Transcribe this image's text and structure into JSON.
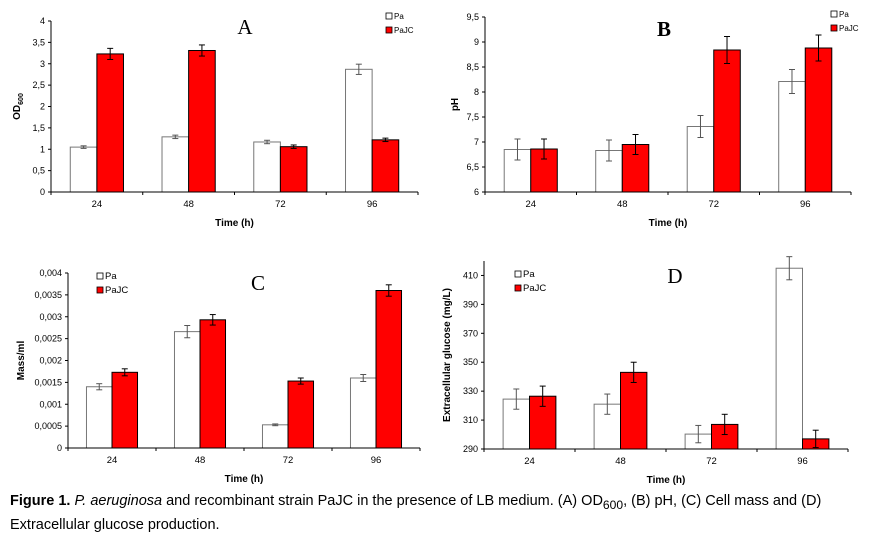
{
  "chart_data": [
    {
      "type": "bar",
      "panel_label": "A",
      "categories": [
        "24",
        "48",
        "72",
        "96"
      ],
      "xlabel": "Time (h)",
      "ylabel": "OD",
      "ylabel_sub": "600",
      "ylim": [
        0,
        4
      ],
      "yticks": [
        0,
        0.5,
        1,
        1.5,
        2,
        2.5,
        3,
        3.5,
        4
      ],
      "ytick_labels": [
        "0",
        "0,5",
        "1",
        "1,5",
        "2",
        "2,5",
        "3",
        "3,5",
        "4"
      ],
      "legend_position": "top-right",
      "series": [
        {
          "name": "Pa",
          "color": "#ffffff",
          "values": [
            1.05,
            1.29,
            1.17,
            2.87
          ],
          "errors": [
            0.03,
            0.04,
            0.04,
            0.12
          ]
        },
        {
          "name": "PaJC",
          "color": "#ff0000",
          "values": [
            3.23,
            3.31,
            1.06,
            1.22
          ],
          "errors": [
            0.13,
            0.13,
            0.04,
            0.04
          ]
        }
      ]
    },
    {
      "type": "bar",
      "panel_label": "B",
      "categories": [
        "24",
        "48",
        "72",
        "96"
      ],
      "xlabel": "Time (h)",
      "ylabel": "pH",
      "ylim": [
        6,
        9.5
      ],
      "yticks": [
        6,
        6.5,
        7,
        7.5,
        8,
        8.5,
        9,
        9.5
      ],
      "ytick_labels": [
        "6",
        "6,5",
        "7",
        "7,5",
        "8",
        "8,5",
        "9",
        "9,5"
      ],
      "legend_position": "top-right",
      "series": [
        {
          "name": "Pa",
          "color": "#ffffff",
          "values": [
            6.85,
            6.83,
            7.31,
            8.21
          ],
          "errors": [
            0.21,
            0.21,
            0.22,
            0.24
          ]
        },
        {
          "name": "PaJC",
          "color": "#ff0000",
          "values": [
            6.86,
            6.95,
            8.84,
            8.88
          ],
          "errors": [
            0.2,
            0.2,
            0.27,
            0.26
          ]
        }
      ]
    },
    {
      "type": "bar",
      "panel_label": "C",
      "categories": [
        "24",
        "48",
        "72",
        "96"
      ],
      "xlabel": "Time (h)",
      "ylabel": "Mass/ml",
      "ylim": [
        0,
        0.004
      ],
      "yticks": [
        0,
        0.0005,
        0.001,
        0.0015,
        0.002,
        0.0025,
        0.003,
        0.0035,
        0.004
      ],
      "ytick_labels": [
        "0",
        "0,0005",
        "0,001",
        "0,0015",
        "0,002",
        "0,0025",
        "0,003",
        "0,0035",
        "0,004"
      ],
      "legend_position": "top-left",
      "series": [
        {
          "name": "Pa",
          "color": "#ffffff",
          "values": [
            0.0014,
            0.00266,
            0.00053,
            0.0016
          ],
          "errors": [
            7e-05,
            0.00014,
            2e-05,
            8e-05
          ]
        },
        {
          "name": "PaJC",
          "color": "#ff0000",
          "values": [
            0.00173,
            0.00293,
            0.00153,
            0.0036
          ],
          "errors": [
            8e-05,
            0.00012,
            7e-05,
            0.00013
          ]
        }
      ]
    },
    {
      "type": "bar",
      "panel_label": "D",
      "categories": [
        "24",
        "48",
        "72",
        "96"
      ],
      "xlabel": "Time (h)",
      "ylabel": "Extracellular glucose (mg/L)",
      "ylim": [
        290,
        420
      ],
      "yticks": [
        290,
        310,
        330,
        350,
        370,
        390,
        410
      ],
      "ytick_labels": [
        "290",
        "310",
        "330",
        "350",
        "370",
        "390",
        "410"
      ],
      "legend_position": "top-left",
      "series": [
        {
          "name": "Pa",
          "color": "#ffffff",
          "values": [
            324.5,
            321,
            300.3,
            415
          ],
          "errors": [
            7,
            7,
            6,
            8
          ]
        },
        {
          "name": "PaJC",
          "color": "#ff0000",
          "values": [
            326.5,
            343,
            307,
            297
          ],
          "errors": [
            7,
            7,
            7,
            6
          ]
        }
      ]
    }
  ],
  "caption": {
    "label": "Figure 1.",
    "species": "P. aeruginosa",
    "text1": " and recombinant strain PaJC in the presence of LB medium. (A) OD",
    "sub": "600",
    "text2": ", (B) pH, (C) Cell mass and (D) Extracellular glucose production."
  }
}
